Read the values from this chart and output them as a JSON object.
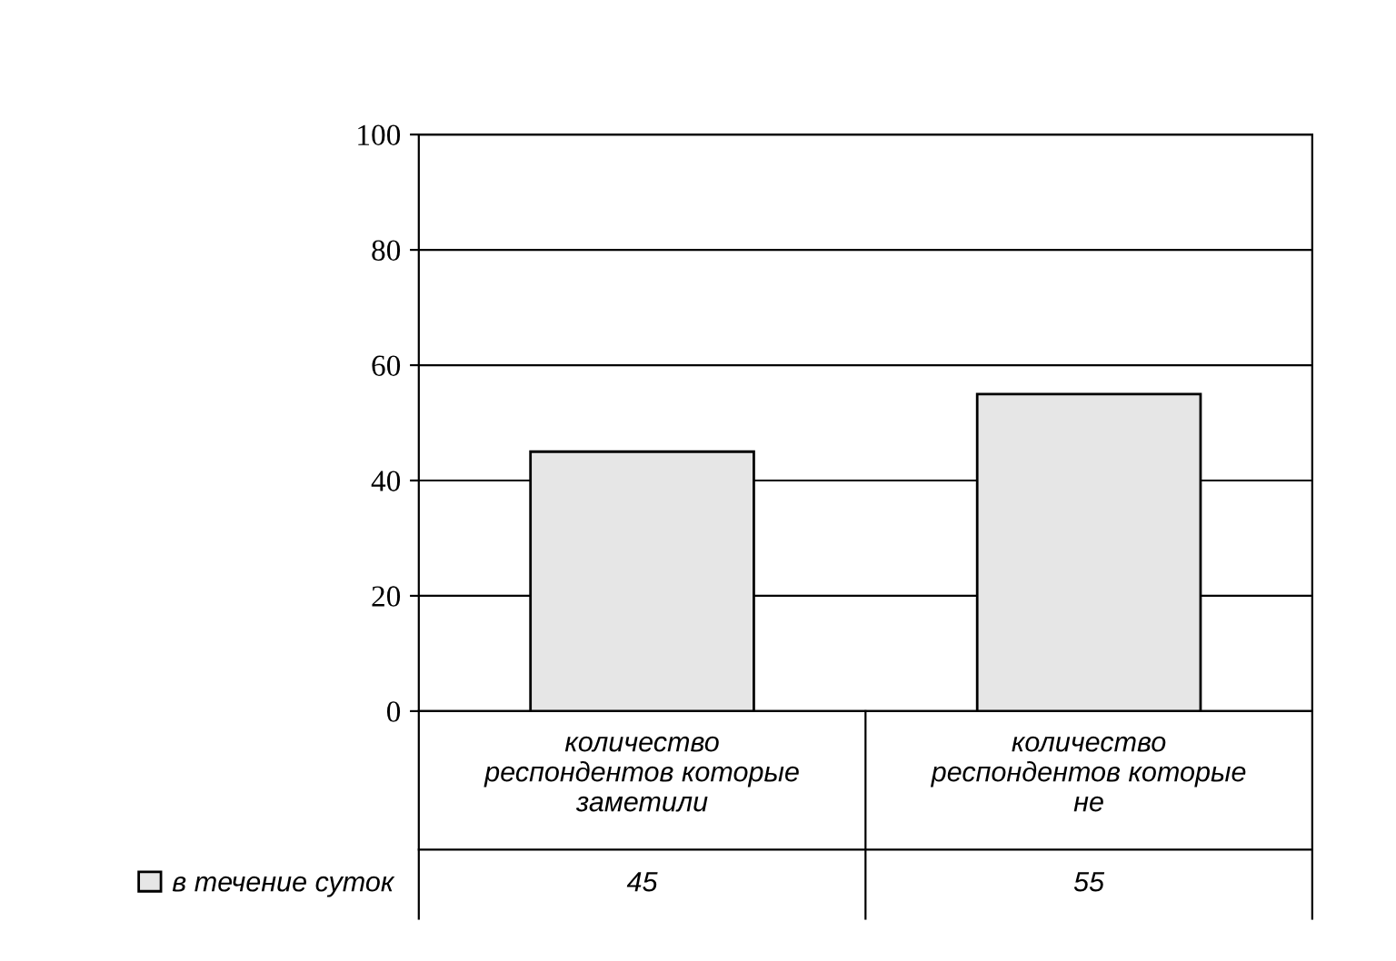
{
  "chart_data": {
    "type": "bar",
    "categories": [
      "количество респондентов которые заметили",
      "количество респондентов которые не"
    ],
    "series": [
      {
        "name": "в течение суток",
        "color": "#e6e6e6",
        "values": [
          45,
          55
        ]
      }
    ],
    "ylim": [
      0,
      100
    ],
    "yticks": [
      0,
      20,
      40,
      60,
      80,
      100
    ],
    "grid": "y",
    "legend": "bottom left",
    "data_labels": true
  }
}
